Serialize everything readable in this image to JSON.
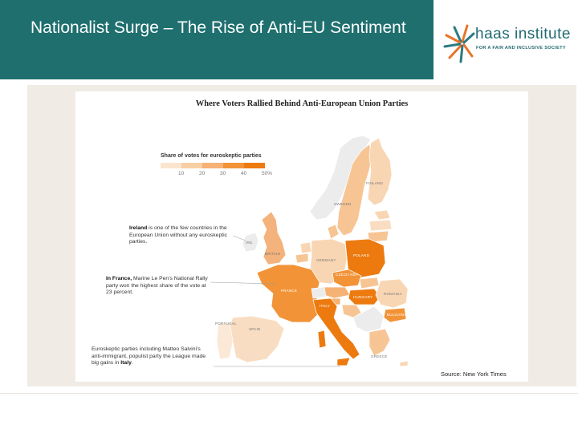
{
  "header": {
    "title": "Nationalist Surge – The Rise of Anti-EU Sentiment"
  },
  "logo": {
    "word": "haas institute",
    "tagline": "FOR A FAIR AND INCLUSIVE SOCIETY"
  },
  "map": {
    "title": "Where Voters Rallied Behind Anti-European Union Parties",
    "legend": {
      "title": "Share of votes for euroskeptic parties",
      "ticks": [
        "10",
        "20",
        "30",
        "40",
        "50%"
      ],
      "colors": [
        "#fbe5cf",
        "#f8cfa4",
        "#f5b274",
        "#f29338",
        "#ec7a0f"
      ]
    },
    "notes": {
      "ireland": {
        "bold": "Ireland",
        "text": " is one of the few countries in the European Union without any euroskeptic parties."
      },
      "france": {
        "bold": "In France,",
        "text": " Marine Le Pen's National Rally party won the highest share of the vote at 23 percent."
      },
      "italy": {
        "pre": "Euroskeptic parties including Matteo Salvini's anti-immigrant, populist party the League made big gains in ",
        "bold": "Italy",
        "post": "."
      }
    },
    "country_labels": {
      "finland": "FINLAND",
      "sweden": "SWEDEN",
      "ireland": "IRE.",
      "britain": "BRITAIN",
      "germany": "GERMANY",
      "poland": "POLAND",
      "czech": "CZECH REP.",
      "hungary": "HUNGARY",
      "romania": "ROMANIA",
      "bulgaria": "BULGARIA",
      "france": "FRANCE",
      "italy": "ITALY",
      "spain": "SPAIN",
      "portugal": "PORTUGAL",
      "greece": "GREECE"
    }
  },
  "source": "Source: New York Times"
}
